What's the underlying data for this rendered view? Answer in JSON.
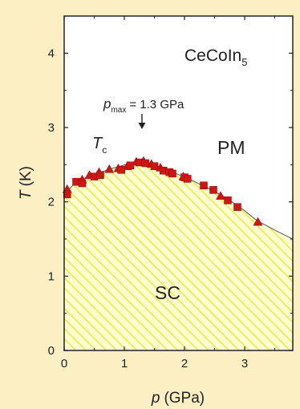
{
  "chart_data": {
    "type": "scatter",
    "xlabel_var": "p",
    "xlabel_unit": "(GPa)",
    "ylabel_var": "T",
    "ylabel_unit": "(K)",
    "xlim": [
      0,
      3.8
    ],
    "ylim": [
      0,
      4.5
    ],
    "x_ticks": [
      "0",
      "1",
      "2",
      "3"
    ],
    "y_ticks": [
      "0",
      "1",
      "2",
      "3",
      "4"
    ],
    "grid": false,
    "colors": {
      "marker": "#d01515",
      "sc_hatch": "#e8ec3a",
      "sc_fill": "#ffffd2",
      "boundary": "#555555",
      "page_bg": "#fcefc4"
    },
    "annotations": {
      "compound_main": "CeCoIn",
      "compound_sub": "5",
      "pmax_var": "p",
      "pmax_sub": "max",
      "pmax_value": "= 1.3 GPa",
      "tc_var": "T",
      "tc_sub": "c",
      "pm": "PM",
      "sc": "SC"
    },
    "series": [
      {
        "marker": "triangle",
        "points": [
          {
            "x": 0.05,
            "y": 2.17
          },
          {
            "x": 0.3,
            "y": 2.3
          },
          {
            "x": 0.42,
            "y": 2.36
          },
          {
            "x": 0.58,
            "y": 2.4
          },
          {
            "x": 0.75,
            "y": 2.44
          },
          {
            "x": 0.9,
            "y": 2.45
          },
          {
            "x": 1.05,
            "y": 2.48
          },
          {
            "x": 1.2,
            "y": 2.54
          },
          {
            "x": 1.32,
            "y": 2.55
          },
          {
            "x": 1.45,
            "y": 2.51
          },
          {
            "x": 1.6,
            "y": 2.46
          },
          {
            "x": 1.98,
            "y": 2.34
          },
          {
            "x": 2.6,
            "y": 2.08
          },
          {
            "x": 3.22,
            "y": 1.73
          }
        ]
      },
      {
        "marker": "square",
        "points": [
          {
            "x": 0.05,
            "y": 2.1
          },
          {
            "x": 0.2,
            "y": 2.27
          },
          {
            "x": 0.3,
            "y": 2.25
          },
          {
            "x": 0.5,
            "y": 2.34
          },
          {
            "x": 0.6,
            "y": 2.36
          },
          {
            "x": 0.95,
            "y": 2.43
          },
          {
            "x": 1.1,
            "y": 2.49
          },
          {
            "x": 1.25,
            "y": 2.53
          },
          {
            "x": 1.35,
            "y": 2.52
          },
          {
            "x": 1.5,
            "y": 2.48
          },
          {
            "x": 1.65,
            "y": 2.42
          },
          {
            "x": 1.75,
            "y": 2.4
          },
          {
            "x": 1.8,
            "y": 2.38
          },
          {
            "x": 2.0,
            "y": 2.33
          },
          {
            "x": 2.05,
            "y": 2.31
          },
          {
            "x": 2.32,
            "y": 2.22
          },
          {
            "x": 2.48,
            "y": 2.16
          },
          {
            "x": 2.72,
            "y": 2.02
          },
          {
            "x": 2.88,
            "y": 1.93
          }
        ]
      }
    ],
    "boundary": [
      [
        0,
        2.1
      ],
      [
        0.2,
        2.27
      ],
      [
        0.5,
        2.37
      ],
      [
        0.8,
        2.45
      ],
      [
        1.1,
        2.52
      ],
      [
        1.3,
        2.55
      ],
      [
        1.5,
        2.5
      ],
      [
        1.8,
        2.4
      ],
      [
        2.1,
        2.3
      ],
      [
        2.4,
        2.18
      ],
      [
        2.7,
        2.05
      ],
      [
        3.0,
        1.88
      ],
      [
        3.2,
        1.75
      ],
      [
        3.5,
        1.62
      ],
      [
        3.8,
        1.5
      ]
    ]
  }
}
